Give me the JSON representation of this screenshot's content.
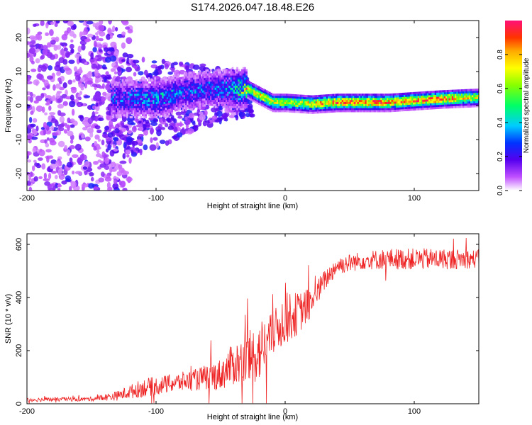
{
  "figure_title": "S174.2026.047.18.48.E26",
  "colors": {
    "snr_line": "#ee2222",
    "axis": "#000000",
    "background": "#ffffff"
  },
  "chart_data": [
    {
      "type": "heatmap",
      "title": "S174.2026.047.18.48.E26",
      "xlabel": "Height of straight line (km)",
      "ylabel": "Frequency (Hz)",
      "xlim": [
        -200,
        150
      ],
      "ylim": [
        -25,
        25
      ],
      "x_ticks": [
        -200,
        -100,
        0,
        100
      ],
      "y_ticks": [
        20,
        10,
        0,
        -10,
        -20
      ],
      "colorbar": {
        "label": "Normalized spectral amplitude",
        "range": [
          0,
          1
        ],
        "ticks": [
          0.0,
          0.2,
          0.4,
          0.6,
          0.8
        ],
        "tick_labels": [
          "0.0",
          "0.2",
          "0.4",
          "0.6",
          "0.8"
        ]
      },
      "ridge": {
        "description_points_x": [
          -130,
          -100,
          -80,
          -60,
          -45,
          -30,
          -20,
          -10,
          0,
          20,
          40,
          60,
          80,
          100,
          120,
          150
        ],
        "frequency": [
          2,
          2,
          4,
          5,
          5,
          5,
          3,
          1,
          1,
          0.5,
          1,
          1,
          1,
          1.5,
          2,
          2.5
        ],
        "peak_amplitude": [
          0.3,
          0.4,
          0.35,
          0.3,
          0.4,
          0.7,
          0.8,
          0.75,
          0.7,
          0.8,
          0.95,
          0.95,
          0.9,
          0.9,
          0.95,
          0.7
        ]
      }
    },
    {
      "type": "line",
      "xlabel": "Height of straight line (km)",
      "ylabel": "SNR (10 * v/v)",
      "xlim": [
        -200,
        150
      ],
      "ylim": [
        0,
        640
      ],
      "x_ticks": [
        -200,
        -100,
        0,
        100
      ],
      "y_ticks": [
        0,
        200,
        400,
        600
      ],
      "series": [
        {
          "name": "SNR",
          "trend_x": [
            -200,
            -150,
            -130,
            -110,
            -90,
            -70,
            -50,
            -40,
            -30,
            -20,
            -10,
            0,
            10,
            20,
            30,
            40,
            60,
            80,
            100,
            120,
            150
          ],
          "trend_y": [
            15,
            18,
            30,
            60,
            75,
            90,
            110,
            150,
            160,
            200,
            260,
            320,
            340,
            380,
            460,
            520,
            540,
            545,
            545,
            545,
            545
          ],
          "noise_amplitude": [
            8,
            8,
            18,
            35,
            35,
            40,
            60,
            80,
            100,
            120,
            80,
            100,
            80,
            60,
            40,
            35,
            35,
            40,
            40,
            40,
            35
          ]
        }
      ]
    }
  ]
}
